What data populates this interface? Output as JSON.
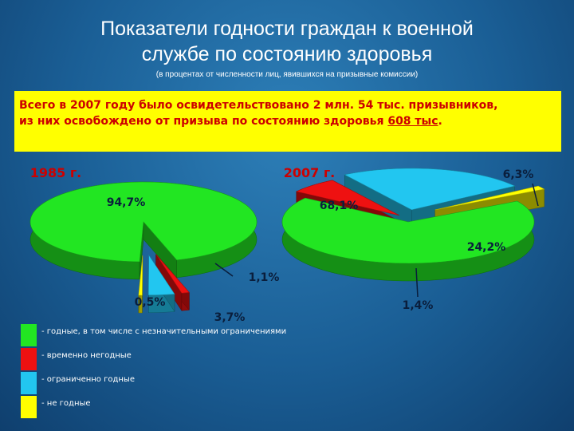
{
  "slide": {
    "title_line1": "Показатели  годности граждан к военной",
    "title_line2": "службе по состоянию здоровья",
    "subtitle": "(в процентах от численности лиц, явившихся на призывные комиссии)"
  },
  "infobox": {
    "part1": "Всего в 2007 году было освидетельствовано 2 млн. 54 тыс. призывников,",
    "part2": "из них освобождено от призыва по состоянию здоровья ",
    "highlight": "608 тыс",
    "part3": "."
  },
  "legend": [
    {
      "label": "- годные, в том числе с незначительными ограничениями",
      "color": "#22e622"
    },
    {
      "label": "- временно негодные",
      "color": "#ee1111"
    },
    {
      "label": "- ограниченно годные",
      "color": "#22c6f0"
    },
    {
      "label": "- не годные",
      "color": "#ffff00"
    }
  ],
  "chart_data": [
    {
      "type": "pie",
      "title": "1985 г.",
      "categories": [
        "годные",
        "временно негодные",
        "ограниченно годные",
        "не годные"
      ],
      "values": [
        94.7,
        1.1,
        3.7,
        0.5
      ],
      "data_labels": [
        "94,7%",
        "1,1%",
        "3,7%",
        "0,5%"
      ],
      "colors": [
        "#22e622",
        "#ee1111",
        "#22c6f0",
        "#ffff00"
      ]
    },
    {
      "type": "pie",
      "title": "2007 г.",
      "categories": [
        "годные",
        "временно негодные",
        "ограниченно годные",
        "не годные"
      ],
      "values": [
        68.1,
        6.3,
        24.2,
        1.4
      ],
      "data_labels": [
        "68,1%",
        "6,3%",
        "24,2%",
        "1,4%"
      ],
      "colors": [
        "#22e622",
        "#ee1111",
        "#22c6f0",
        "#ffff00"
      ]
    }
  ]
}
